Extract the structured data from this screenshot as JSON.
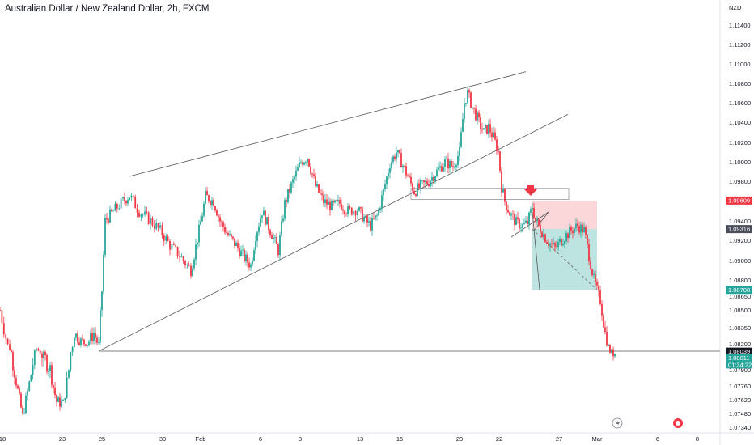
{
  "title": "Australian Dollar / New Zealand Dollar, 2h, FXCM",
  "chart_data": {
    "type": "candlestick",
    "title": "Australian Dollar / New Zealand Dollar, 2h, FXCM",
    "currency": "NZD",
    "ylim": [
      1.072,
      1.116
    ],
    "y_ticks": [
      "1.11400",
      "1.11200",
      "1.11000",
      "1.10800",
      "1.10600",
      "1.10400",
      "1.10200",
      "1.10000",
      "1.09800",
      "1.09600",
      "1.09400",
      "1.09200",
      "1.09000",
      "1.08800",
      "1.08650",
      "1.08500",
      "1.08350",
      "1.08200",
      "1.08000",
      "1.07900",
      "1.07760",
      "1.07620",
      "1.07480",
      "1.07340"
    ],
    "x_ticks": [
      "18",
      "23",
      "25",
      "30",
      "Feb",
      "6",
      "8",
      "13",
      "15",
      "20",
      "22",
      "27",
      "Mar",
      "6",
      "8"
    ],
    "price_tags": [
      {
        "label": "1.09609",
        "value": 1.09609,
        "color": "#f23645"
      },
      {
        "label": "1.09316",
        "value": 1.09316,
        "color": "#4a4e59"
      },
      {
        "label": "1.08708",
        "value": 1.08708,
        "color": "#26a69a"
      },
      {
        "label": "1.08039",
        "value": 1.08039,
        "color": "#131722"
      },
      {
        "label": "1.08011",
        "value": 1.08011,
        "color": "#26a69a",
        "sub": "01:34:22"
      }
    ],
    "path": [
      [
        0,
        1.085
      ],
      [
        12,
        1.081
      ],
      [
        20,
        1.078
      ],
      [
        28,
        1.0745
      ],
      [
        34,
        1.077
      ],
      [
        45,
        1.081
      ],
      [
        52,
        1.08
      ],
      [
        62,
        1.079
      ],
      [
        70,
        1.076
      ],
      [
        78,
        1.0758
      ],
      [
        85,
        1.079
      ],
      [
        92,
        1.083
      ],
      [
        100,
        1.0822
      ],
      [
        108,
        1.082
      ],
      [
        116,
        1.083
      ],
      [
        122,
        1.0818
      ],
      [
        126,
        1.087
      ],
      [
        130,
        1.094
      ],
      [
        140,
        1.095
      ],
      [
        152,
        1.096
      ],
      [
        160,
        1.0966
      ],
      [
        172,
        1.095
      ],
      [
        186,
        1.094
      ],
      [
        198,
        1.093
      ],
      [
        210,
        1.0915
      ],
      [
        222,
        1.0905
      ],
      [
        236,
        1.089
      ],
      [
        246,
        1.093
      ],
      [
        254,
        1.0965
      ],
      [
        264,
        1.096
      ],
      [
        272,
        1.094
      ],
      [
        282,
        1.0925
      ],
      [
        292,
        1.0915
      ],
      [
        300,
        1.0905
      ],
      [
        310,
        1.0895
      ],
      [
        316,
        1.0925
      ],
      [
        324,
        1.095
      ],
      [
        334,
        1.093
      ],
      [
        344,
        1.091
      ],
      [
        352,
        1.0958
      ],
      [
        362,
        1.098
      ],
      [
        372,
        1.1
      ],
      [
        380,
        1.1005
      ],
      [
        390,
        1.0975
      ],
      [
        400,
        1.096
      ],
      [
        410,
        1.0955
      ],
      [
        420,
        1.0958
      ],
      [
        430,
        1.095
      ],
      [
        442,
        1.0952
      ],
      [
        452,
        1.094
      ],
      [
        458,
        1.0935
      ],
      [
        466,
        1.0945
      ],
      [
        474,
        1.097
      ],
      [
        482,
        1.0998
      ],
      [
        490,
        1.101
      ],
      [
        496,
        1.1
      ],
      [
        504,
        1.0985
      ],
      [
        512,
        1.097
      ],
      [
        520,
        1.0975
      ],
      [
        530,
        1.098
      ],
      [
        540,
        1.099
      ],
      [
        550,
        1.1
      ],
      [
        560,
        1.0995
      ],
      [
        568,
        1.101
      ],
      [
        574,
        1.106
      ],
      [
        578,
        1.107
      ],
      [
        584,
        1.1055
      ],
      [
        592,
        1.104
      ],
      [
        598,
        1.103
      ],
      [
        604,
        1.1035
      ],
      [
        610,
        1.1025
      ],
      [
        616,
        1.101
      ],
      [
        620,
        1.0975
      ],
      [
        624,
        1.096
      ],
      [
        630,
        1.0948
      ],
      [
        638,
        1.0938
      ],
      [
        646,
        1.0935
      ],
      [
        652,
        1.0938
      ],
      [
        658,
        1.0955
      ],
      [
        662,
        1.094
      ],
      [
        668,
        1.0932
      ],
      [
        676,
        1.092
      ],
      [
        686,
        1.0912
      ],
      [
        696,
        1.0922
      ],
      [
        706,
        1.093
      ],
      [
        714,
        1.0935
      ],
      [
        722,
        1.093
      ],
      [
        728,
        1.0905
      ],
      [
        734,
        1.088
      ],
      [
        742,
        1.086
      ],
      [
        748,
        1.083
      ],
      [
        754,
        1.0805
      ],
      [
        762,
        1.08
      ]
    ],
    "annotations": {
      "rising_wedge": {
        "upper": [
          [
            160,
            1.0985
          ],
          [
            650,
            1.1092
          ]
        ],
        "lower": [
          [
            122,
            1.0805
          ],
          [
            702,
            1.1048
          ]
        ]
      },
      "support_line": [
        [
          122,
          1.0805
        ],
        [
          932,
          1.0805
        ]
      ],
      "sell_zone": {
        "x": [
          508,
          703
        ],
        "y": [
          1.0962,
          1.0973
        ]
      },
      "short_position": {
        "x": [
          658,
          738
        ],
        "entry": 1.09316,
        "stop": 1.09609,
        "target": 1.08708
      }
    }
  }
}
